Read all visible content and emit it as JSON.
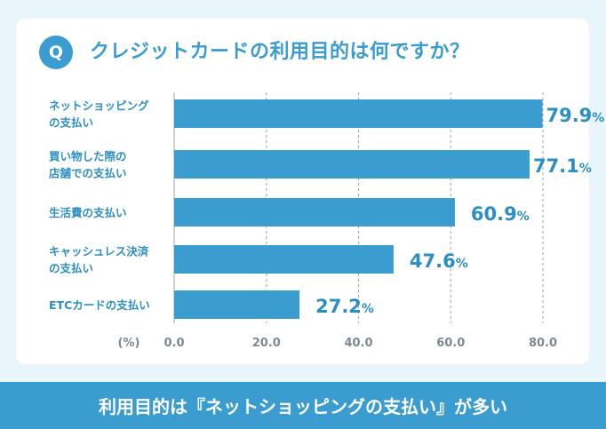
{
  "question": {
    "badge": "Q",
    "text": "クレジットカードの利用目的は何ですか？"
  },
  "footer": {
    "text": "利用目的は『ネットショッピングの支払い』が多い"
  },
  "colors": {
    "accent": "#3a9ccf",
    "bar": "#3a9ccf",
    "label": "#2c8fc4",
    "axis_text": "#7a8a94",
    "grid": "#9aa5ab"
  },
  "chart_data": {
    "type": "bar",
    "orientation": "horizontal",
    "categories": [
      [
        "ネットショッピング",
        "の支払い"
      ],
      [
        "買い物した際の",
        "店舗での支払い"
      ],
      [
        "生活費の支払い"
      ],
      [
        "キャッシュレス決済",
        "の支払い"
      ],
      [
        "ETCカードの支払い"
      ]
    ],
    "values": [
      79.9,
      77.1,
      60.9,
      47.6,
      27.2
    ],
    "value_suffix": "%",
    "xlim": [
      0,
      80
    ],
    "xticks": [
      "0.0",
      "20.0",
      "40.0",
      "60.0",
      "80.0"
    ],
    "unit_label": "(%)",
    "grid": "dashed vertical"
  }
}
